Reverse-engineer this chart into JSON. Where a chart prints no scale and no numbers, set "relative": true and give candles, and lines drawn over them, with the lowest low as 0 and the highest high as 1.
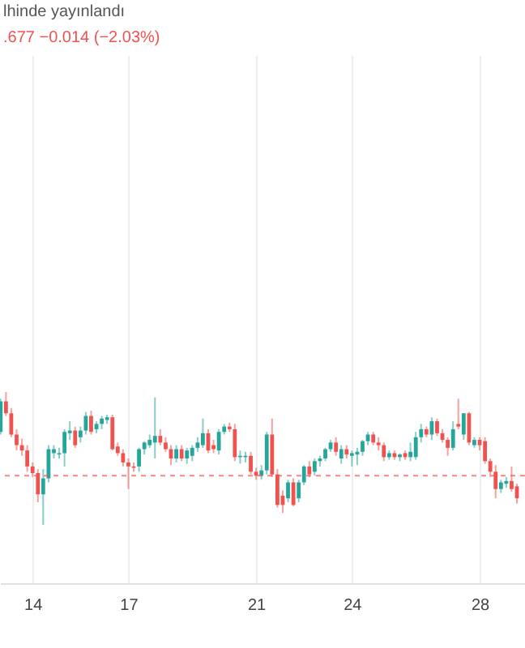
{
  "chart_data": {
    "type": "candlestick",
    "title": "lhinde yayınlandı",
    "subtitle": ".677  −0.014 (−2.03%)",
    "relative": true,
    "grid": "x",
    "xlim": [
      12.98,
      29.42
    ],
    "xticks": [
      14,
      17,
      21,
      24,
      28
    ],
    "x": [
      13,
      13.167,
      13.333,
      13.5,
      13.667,
      13.833,
      14,
      14.167,
      14.333,
      14.5,
      14.667,
      14.833,
      15,
      15.167,
      15.333,
      15.5,
      15.667,
      15.833,
      16,
      16.167,
      16.333,
      16.5,
      16.667,
      16.833,
      17,
      17.167,
      17.333,
      17.5,
      17.667,
      17.833,
      18,
      18.167,
      18.333,
      18.5,
      18.667,
      18.833,
      19,
      19.167,
      19.333,
      19.5,
      19.667,
      19.833,
      20,
      20.167,
      20.333,
      20.5,
      20.667,
      20.833,
      21,
      21.167,
      21.333,
      21.5,
      21.667,
      21.833,
      22,
      22.167,
      22.333,
      22.5,
      22.667,
      22.833,
      23,
      23.167,
      23.333,
      23.5,
      23.667,
      23.833,
      24,
      24.167,
      24.333,
      24.5,
      24.667,
      24.833,
      25,
      25.167,
      25.333,
      25.5,
      25.667,
      25.833,
      26,
      26.167,
      26.333,
      26.5,
      26.667,
      26.833,
      27,
      27.167,
      27.333,
      27.5,
      27.667,
      27.833,
      28,
      28.167,
      28.333,
      28.5,
      28.667,
      28.833,
      29,
      29.167
    ],
    "ohlc": [
      [
        0.7,
        0.95,
        0.68,
        0.93
      ],
      [
        0.93,
        1.0,
        0.82,
        0.84
      ],
      [
        0.84,
        0.88,
        0.66,
        0.68
      ],
      [
        0.68,
        0.72,
        0.56,
        0.6
      ],
      [
        0.6,
        0.65,
        0.52,
        0.56
      ],
      [
        0.56,
        0.6,
        0.4,
        0.44
      ],
      [
        0.44,
        0.47,
        0.36,
        0.39
      ],
      [
        0.39,
        0.42,
        0.17,
        0.23
      ],
      [
        0.23,
        0.42,
        0.0,
        0.35
      ],
      [
        0.35,
        0.6,
        0.32,
        0.57
      ],
      [
        0.54,
        0.6,
        0.5,
        0.57
      ],
      [
        0.53,
        0.58,
        0.5,
        0.54
      ],
      [
        0.54,
        0.72,
        0.44,
        0.7
      ],
      [
        0.69,
        0.78,
        0.64,
        0.71
      ],
      [
        0.71,
        0.74,
        0.58,
        0.6
      ],
      [
        0.66,
        0.74,
        0.62,
        0.71
      ],
      [
        0.71,
        0.85,
        0.68,
        0.82
      ],
      [
        0.82,
        0.86,
        0.68,
        0.7
      ],
      [
        0.72,
        0.78,
        0.69,
        0.76
      ],
      [
        0.76,
        0.82,
        0.72,
        0.8
      ],
      [
        0.79,
        0.83,
        0.76,
        0.81
      ],
      [
        0.81,
        0.83,
        0.56,
        0.57
      ],
      [
        0.59,
        0.62,
        0.52,
        0.54
      ],
      [
        0.54,
        0.57,
        0.44,
        0.47
      ],
      [
        0.47,
        0.5,
        0.27,
        0.44
      ],
      [
        0.44,
        0.47,
        0.4,
        0.43
      ],
      [
        0.44,
        0.58,
        0.4,
        0.57
      ],
      [
        0.57,
        0.63,
        0.53,
        0.62
      ],
      [
        0.6,
        0.68,
        0.58,
        0.64
      ],
      [
        0.62,
        0.96,
        0.5,
        0.67
      ],
      [
        0.67,
        0.72,
        0.6,
        0.62
      ],
      [
        0.62,
        0.66,
        0.55,
        0.57
      ],
      [
        0.57,
        0.6,
        0.45,
        0.5
      ],
      [
        0.5,
        0.6,
        0.47,
        0.57
      ],
      [
        0.57,
        0.6,
        0.48,
        0.5
      ],
      [
        0.5,
        0.58,
        0.46,
        0.56
      ],
      [
        0.52,
        0.6,
        0.48,
        0.58
      ],
      [
        0.58,
        0.66,
        0.55,
        0.62
      ],
      [
        0.6,
        0.8,
        0.58,
        0.69
      ],
      [
        0.69,
        0.72,
        0.54,
        0.56
      ],
      [
        0.6,
        0.64,
        0.54,
        0.57
      ],
      [
        0.56,
        0.72,
        0.53,
        0.7
      ],
      [
        0.7,
        0.76,
        0.68,
        0.74
      ],
      [
        0.74,
        0.77,
        0.7,
        0.72
      ],
      [
        0.72,
        0.76,
        0.48,
        0.51
      ],
      [
        0.51,
        0.56,
        0.46,
        0.52
      ],
      [
        0.51,
        0.55,
        0.47,
        0.52
      ],
      [
        0.52,
        0.55,
        0.38,
        0.4
      ],
      [
        0.4,
        0.43,
        0.34,
        0.37
      ],
      [
        0.37,
        0.45,
        0.34,
        0.41
      ],
      [
        0.41,
        0.7,
        0.38,
        0.68
      ],
      [
        0.68,
        0.8,
        0.36,
        0.38
      ],
      [
        0.38,
        0.42,
        0.13,
        0.15
      ],
      [
        0.22,
        0.26,
        0.09,
        0.15
      ],
      [
        0.2,
        0.34,
        0.17,
        0.32
      ],
      [
        0.32,
        0.35,
        0.14,
        0.15
      ],
      [
        0.2,
        0.34,
        0.17,
        0.32
      ],
      [
        0.32,
        0.45,
        0.3,
        0.44
      ],
      [
        0.44,
        0.48,
        0.36,
        0.38
      ],
      [
        0.4,
        0.5,
        0.37,
        0.48
      ],
      [
        0.48,
        0.52,
        0.44,
        0.5
      ],
      [
        0.5,
        0.58,
        0.48,
        0.57
      ],
      [
        0.57,
        0.64,
        0.55,
        0.62
      ],
      [
        0.62,
        0.66,
        0.52,
        0.55
      ],
      [
        0.5,
        0.6,
        0.46,
        0.57
      ],
      [
        0.57,
        0.6,
        0.5,
        0.53
      ],
      [
        0.52,
        0.56,
        0.44,
        0.54
      ],
      [
        0.53,
        0.58,
        0.45,
        0.55
      ],
      [
        0.55,
        0.64,
        0.52,
        0.63
      ],
      [
        0.63,
        0.7,
        0.6,
        0.68
      ],
      [
        0.68,
        0.7,
        0.6,
        0.62
      ],
      [
        0.62,
        0.66,
        0.56,
        0.6
      ],
      [
        0.6,
        0.62,
        0.48,
        0.51
      ],
      [
        0.51,
        0.56,
        0.49,
        0.54
      ],
      [
        0.54,
        0.56,
        0.49,
        0.51
      ],
      [
        0.51,
        0.54,
        0.48,
        0.53
      ],
      [
        0.54,
        0.56,
        0.49,
        0.51
      ],
      [
        0.51,
        0.62,
        0.48,
        0.55
      ],
      [
        0.51,
        0.7,
        0.49,
        0.66
      ],
      [
        0.66,
        0.76,
        0.62,
        0.72
      ],
      [
        0.72,
        0.74,
        0.66,
        0.68
      ],
      [
        0.68,
        0.81,
        0.64,
        0.78
      ],
      [
        0.78,
        0.8,
        0.67,
        0.69
      ],
      [
        0.69,
        0.72,
        0.62,
        0.64
      ],
      [
        0.64,
        0.66,
        0.52,
        0.58
      ],
      [
        0.58,
        0.78,
        0.56,
        0.72
      ],
      [
        0.76,
        0.95,
        0.72,
        0.74
      ],
      [
        0.68,
        0.84,
        0.64,
        0.84
      ],
      [
        0.84,
        0.85,
        0.6,
        0.62
      ],
      [
        0.6,
        0.66,
        0.58,
        0.64
      ],
      [
        0.64,
        0.66,
        0.56,
        0.6
      ],
      [
        0.63,
        0.66,
        0.46,
        0.48
      ],
      [
        0.48,
        0.5,
        0.36,
        0.4
      ],
      [
        0.4,
        0.45,
        0.2,
        0.27
      ],
      [
        0.27,
        0.34,
        0.24,
        0.32
      ],
      [
        0.31,
        0.36,
        0.28,
        0.33
      ],
      [
        0.33,
        0.44,
        0.25,
        0.27
      ],
      [
        0.29,
        0.31,
        0.16,
        0.2
      ]
    ],
    "colors": [
      "#26a69a",
      "#ef5350",
      "#ef5350",
      "#ef5350",
      "#ef5350",
      "#ef5350",
      "#ef5350",
      "#ef5350",
      "#26a69a",
      "#26a69a",
      "#26a69a",
      "#26a69a",
      "#26a69a",
      "#26a69a",
      "#ef5350",
      "#26a69a",
      "#26a69a",
      "#ef5350",
      "#26a69a",
      "#26a69a",
      "#26a69a",
      "#ef5350",
      "#ef5350",
      "#ef5350",
      "#ef5350",
      "#ef5350",
      "#26a69a",
      "#26a69a",
      "#26a69a",
      "#26a69a",
      "#ef5350",
      "#ef5350",
      "#ef5350",
      "#26a69a",
      "#ef5350",
      "#26a69a",
      "#26a69a",
      "#26a69a",
      "#26a69a",
      "#ef5350",
      "#ef5350",
      "#26a69a",
      "#26a69a",
      "#ef5350",
      "#ef5350",
      "#26a69a",
      "#26a69a",
      "#ef5350",
      "#ef5350",
      "#26a69a",
      "#26a69a",
      "#ef5350",
      "#ef5350",
      "#ef5350",
      "#26a69a",
      "#ef5350",
      "#26a69a",
      "#26a69a",
      "#ef5350",
      "#26a69a",
      "#26a69a",
      "#26a69a",
      "#26a69a",
      "#ef5350",
      "#26a69a",
      "#ef5350",
      "#26a69a",
      "#26a69a",
      "#26a69a",
      "#26a69a",
      "#ef5350",
      "#ef5350",
      "#ef5350",
      "#26a69a",
      "#ef5350",
      "#26a69a",
      "#ef5350",
      "#26a69a",
      "#26a69a",
      "#26a69a",
      "#ef5350",
      "#26a69a",
      "#ef5350",
      "#ef5350",
      "#ef5350",
      "#26a69a",
      "#ef5350",
      "#26a69a",
      "#ef5350",
      "#26a69a",
      "#ef5350",
      "#ef5350",
      "#ef5350",
      "#ef5350",
      "#26a69a",
      "#26a69a",
      "#ef5350",
      "#ef5350"
    ],
    "ref_lines": [
      {
        "axis": "y",
        "value": 0.37,
        "color": "#ef5350",
        "line_style": "dashed"
      }
    ]
  }
}
